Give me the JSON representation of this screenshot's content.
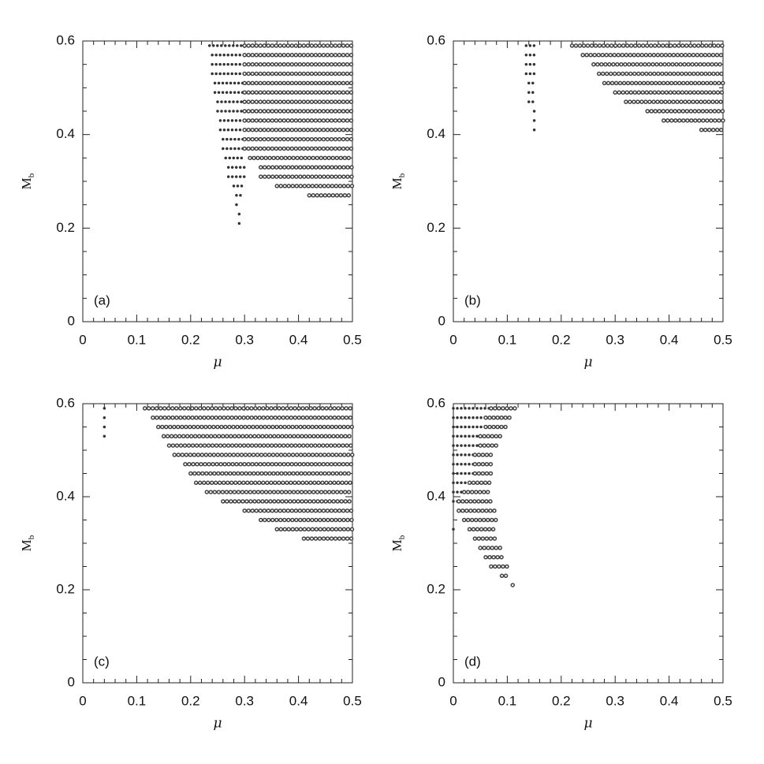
{
  "chart_data": [
    {
      "type": "scatter",
      "label": "(a)",
      "xlabel": "μ",
      "ylabel": {
        "text": "M",
        "sub": "b"
      },
      "xlim": [
        0,
        0.5
      ],
      "ylim": [
        0,
        0.6
      ],
      "xticks": [
        0,
        0.1,
        0.2,
        0.3,
        0.4,
        0.5
      ],
      "yticks": [
        0,
        0.2,
        0.4,
        0.6
      ],
      "series": [
        {
          "marker": "cross",
          "color": "#333333",
          "values": [
            0.59,
            0.57,
            0.55,
            0.53,
            0.51,
            0.49,
            0.47,
            0.45,
            0.43,
            0.41,
            0.39,
            0.37,
            0.35,
            0.33,
            0.31,
            0.29,
            0.27,
            0.25,
            0.23,
            0.21
          ],
          "x": [
            [
              0.235,
              0.3
            ],
            [
              0.24,
              0.3
            ],
            [
              0.24,
              0.3
            ],
            [
              0.24,
              0.3
            ],
            [
              0.245,
              0.3
            ],
            [
              0.245,
              0.3
            ],
            [
              0.25,
              0.3
            ],
            [
              0.25,
              0.3
            ],
            [
              0.255,
              0.3
            ],
            [
              0.255,
              0.3
            ],
            [
              0.26,
              0.3
            ],
            [
              0.26,
              0.3
            ],
            [
              0.265,
              0.3
            ],
            [
              0.27,
              0.3
            ],
            [
              0.27,
              0.3
            ],
            [
              0.28,
              0.295
            ],
            [
              0.285,
              0.295
            ],
            [
              0.285,
              0.29
            ],
            [
              0.29,
              0.29
            ],
            [
              0.29,
              0.29
            ]
          ]
        },
        {
          "marker": "circle",
          "color": "#444444",
          "values": [
            0.59,
            0.57,
            0.55,
            0.53,
            0.51,
            0.49,
            0.47,
            0.45,
            0.43,
            0.41,
            0.39,
            0.37,
            0.35,
            0.33,
            0.31,
            0.29,
            0.27
          ],
          "x": [
            [
              0.3,
              0.5
            ],
            [
              0.3,
              0.5
            ],
            [
              0.3,
              0.5
            ],
            [
              0.3,
              0.5
            ],
            [
              0.3,
              0.5
            ],
            [
              0.3,
              0.5
            ],
            [
              0.3,
              0.5
            ],
            [
              0.3,
              0.5
            ],
            [
              0.3,
              0.5
            ],
            [
              0.3,
              0.5
            ],
            [
              0.3,
              0.5
            ],
            [
              0.3,
              0.5
            ],
            [
              0.31,
              0.5
            ],
            [
              0.33,
              0.5
            ],
            [
              0.33,
              0.5
            ],
            [
              0.36,
              0.5
            ],
            [
              0.42,
              0.5
            ]
          ]
        }
      ]
    },
    {
      "type": "scatter",
      "label": "(b)",
      "xlabel": "μ",
      "ylabel": {
        "text": "M",
        "sub": "b"
      },
      "xlim": [
        0,
        0.5
      ],
      "ylim": [
        0,
        0.6
      ],
      "xticks": [
        0,
        0.1,
        0.2,
        0.3,
        0.4,
        0.5
      ],
      "yticks": [
        0,
        0.2,
        0.4,
        0.6
      ],
      "series": [
        {
          "marker": "cross",
          "color": "#333333",
          "values": [
            0.59,
            0.57,
            0.55,
            0.53,
            0.51,
            0.49,
            0.47,
            0.45,
            0.43,
            0.41
          ],
          "x": [
            [
              0.135,
              0.15
            ],
            [
              0.135,
              0.15
            ],
            [
              0.135,
              0.15
            ],
            [
              0.135,
              0.15
            ],
            [
              0.14,
              0.15
            ],
            [
              0.14,
              0.15
            ],
            [
              0.14,
              0.15
            ],
            [
              0.15,
              0.15
            ],
            [
              0.15,
              0.15
            ],
            [
              0.15,
              0.15
            ]
          ]
        },
        {
          "marker": "circle",
          "color": "#444444",
          "values": [
            0.59,
            0.57,
            0.55,
            0.53,
            0.51,
            0.49,
            0.47,
            0.45,
            0.43,
            0.41
          ],
          "x": [
            [
              0.22,
              0.5
            ],
            [
              0.24,
              0.5
            ],
            [
              0.26,
              0.5
            ],
            [
              0.27,
              0.5
            ],
            [
              0.28,
              0.5
            ],
            [
              0.3,
              0.5
            ],
            [
              0.32,
              0.5
            ],
            [
              0.36,
              0.5
            ],
            [
              0.39,
              0.5
            ],
            [
              0.46,
              0.5
            ]
          ]
        }
      ]
    },
    {
      "type": "scatter",
      "label": "(c)",
      "xlabel": "μ",
      "ylabel": {
        "text": "M",
        "sub": "b"
      },
      "xlim": [
        0,
        0.5
      ],
      "ylim": [
        0,
        0.6
      ],
      "xticks": [
        0,
        0.1,
        0.2,
        0.3,
        0.4,
        0.5
      ],
      "yticks": [
        0,
        0.2,
        0.4,
        0.6
      ],
      "series": [
        {
          "marker": "cross",
          "color": "#333333",
          "values": [
            0.59,
            0.57,
            0.55,
            0.53
          ],
          "x": [
            [
              0.04,
              0.04
            ],
            [
              0.04,
              0.04
            ],
            [
              0.04,
              0.04
            ],
            [
              0.04,
              0.04
            ]
          ]
        },
        {
          "marker": "circle",
          "color": "#444444",
          "values": [
            0.59,
            0.57,
            0.55,
            0.53,
            0.51,
            0.49,
            0.47,
            0.45,
            0.43,
            0.41,
            0.39,
            0.37,
            0.35,
            0.33,
            0.31
          ],
          "x": [
            [
              0.115,
              0.5
            ],
            [
              0.13,
              0.5
            ],
            [
              0.14,
              0.5
            ],
            [
              0.15,
              0.5
            ],
            [
              0.16,
              0.5
            ],
            [
              0.17,
              0.5
            ],
            [
              0.19,
              0.5
            ],
            [
              0.2,
              0.5
            ],
            [
              0.21,
              0.5
            ],
            [
              0.23,
              0.5
            ],
            [
              0.26,
              0.5
            ],
            [
              0.3,
              0.5
            ],
            [
              0.33,
              0.5
            ],
            [
              0.36,
              0.5
            ],
            [
              0.41,
              0.5
            ]
          ]
        }
      ]
    },
    {
      "type": "scatter",
      "label": "(d)",
      "xlabel": "μ",
      "ylabel": {
        "text": "M",
        "sub": "b"
      },
      "xlim": [
        0,
        0.5
      ],
      "ylim": [
        0,
        0.6
      ],
      "xticks": [
        0,
        0.1,
        0.2,
        0.3,
        0.4,
        0.5
      ],
      "yticks": [
        0,
        0.2,
        0.4,
        0.6
      ],
      "series": [
        {
          "marker": "cross",
          "color": "#333333",
          "values": [
            0.59,
            0.57,
            0.55,
            0.53,
            0.51,
            0.49,
            0.47,
            0.45,
            0.43,
            0.41,
            0.39,
            0.33
          ],
          "x": [
            [
              0,
              0.07
            ],
            [
              0,
              0.06
            ],
            [
              0,
              0.06
            ],
            [
              0,
              0.05
            ],
            [
              0,
              0.05
            ],
            [
              0,
              0.04
            ],
            [
              0,
              0.04
            ],
            [
              0,
              0.04
            ],
            [
              0,
              0.03
            ],
            [
              0,
              0.02
            ],
            [
              0,
              0.01
            ],
            [
              0,
              0
            ]
          ]
        },
        {
          "marker": "circle",
          "color": "#444444",
          "values": [
            0.59,
            0.57,
            0.55,
            0.53,
            0.51,
            0.49,
            0.47,
            0.45,
            0.43,
            0.41,
            0.39,
            0.37,
            0.35,
            0.33,
            0.31,
            0.29,
            0.27,
            0.25,
            0.23,
            0.21
          ],
          "x": [
            [
              0.07,
              0.12
            ],
            [
              0.06,
              0.11
            ],
            [
              0.06,
              0.1
            ],
            [
              0.05,
              0.09
            ],
            [
              0.05,
              0.08
            ],
            [
              0.04,
              0.07
            ],
            [
              0.04,
              0.07
            ],
            [
              0.04,
              0.07
            ],
            [
              0.03,
              0.07
            ],
            [
              0.02,
              0.07
            ],
            [
              0.01,
              0.07
            ],
            [
              0.01,
              0.08
            ],
            [
              0.02,
              0.08
            ],
            [
              0.03,
              0.08
            ],
            [
              0.04,
              0.08
            ],
            [
              0.05,
              0.09
            ],
            [
              0.06,
              0.09
            ],
            [
              0.07,
              0.1
            ],
            [
              0.09,
              0.1
            ],
            [
              0.11,
              0.11
            ]
          ]
        }
      ]
    }
  ]
}
